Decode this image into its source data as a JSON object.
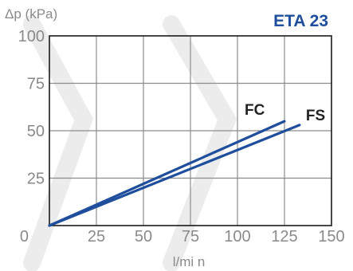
{
  "chart_data": {
    "type": "line",
    "title": "ETA 23",
    "xlabel": "l/mi n",
    "ylabel": "Δp (kPa)",
    "xlim": [
      0,
      150
    ],
    "ylim": [
      0,
      100
    ],
    "xticks": [
      0,
      25,
      50,
      75,
      100,
      125,
      150
    ],
    "yticks": [
      0,
      25,
      50,
      75,
      100
    ],
    "grid": true,
    "line_color": "#1f4e9c",
    "series": [
      {
        "name": "FC",
        "x": [
          0,
          125
        ],
        "y": [
          0,
          55
        ]
      },
      {
        "name": "FS",
        "x": [
          0,
          133
        ],
        "y": [
          0,
          53
        ]
      }
    ]
  }
}
